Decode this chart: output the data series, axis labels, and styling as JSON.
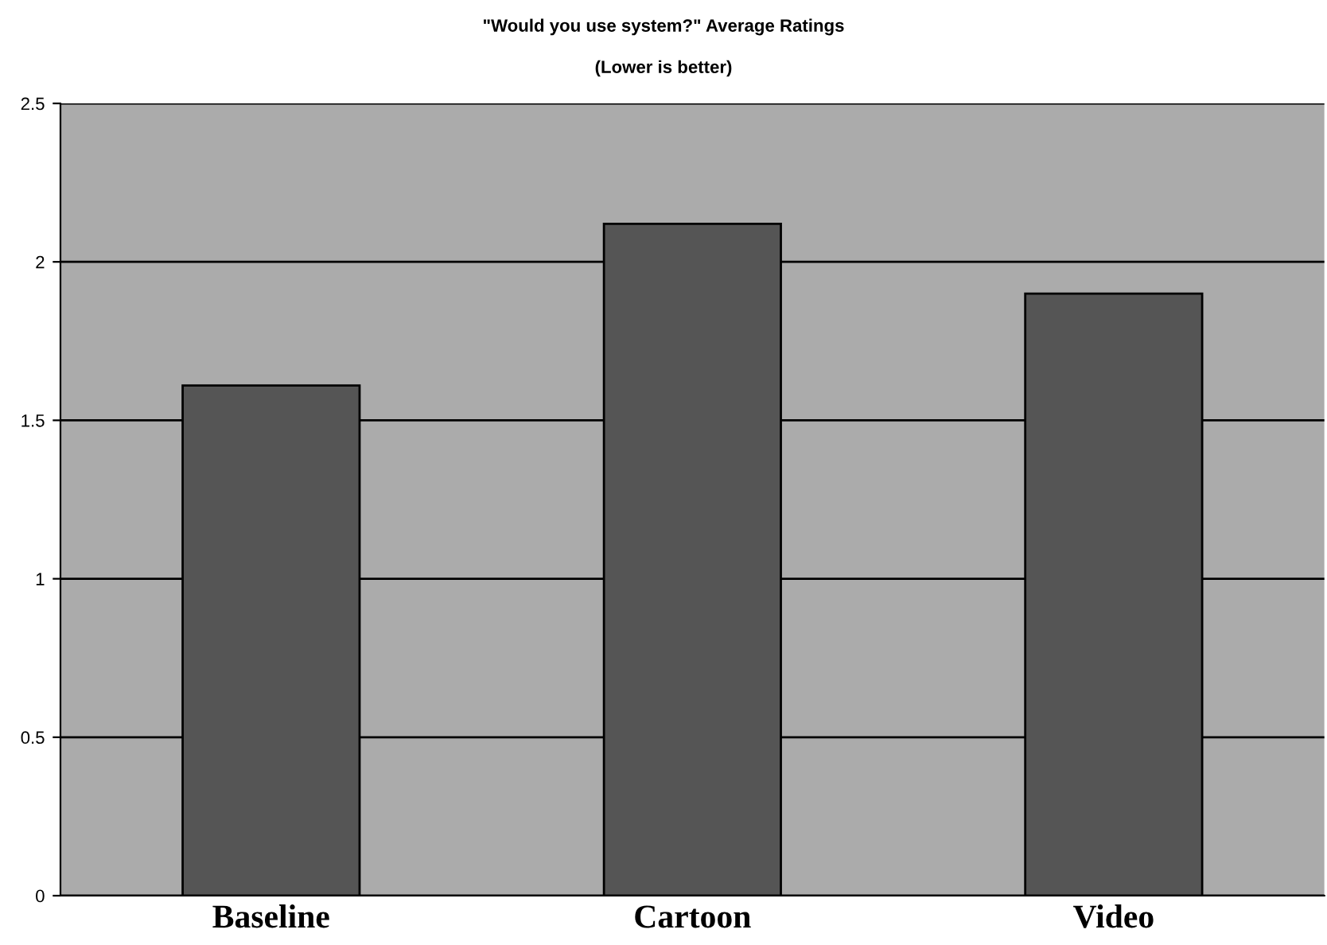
{
  "chart_data": {
    "type": "bar",
    "title": "\"Would you use system?\" Average Ratings",
    "subtitle": "(Lower is better)",
    "categories": [
      "Baseline",
      "Cartoon",
      "Video"
    ],
    "values": [
      1.61,
      2.12,
      1.9
    ],
    "color": "#555555",
    "ylim": [
      0,
      2.5
    ],
    "yticks": [
      0,
      0.5,
      1,
      1.5,
      2,
      2.5
    ],
    "grid": "y"
  }
}
